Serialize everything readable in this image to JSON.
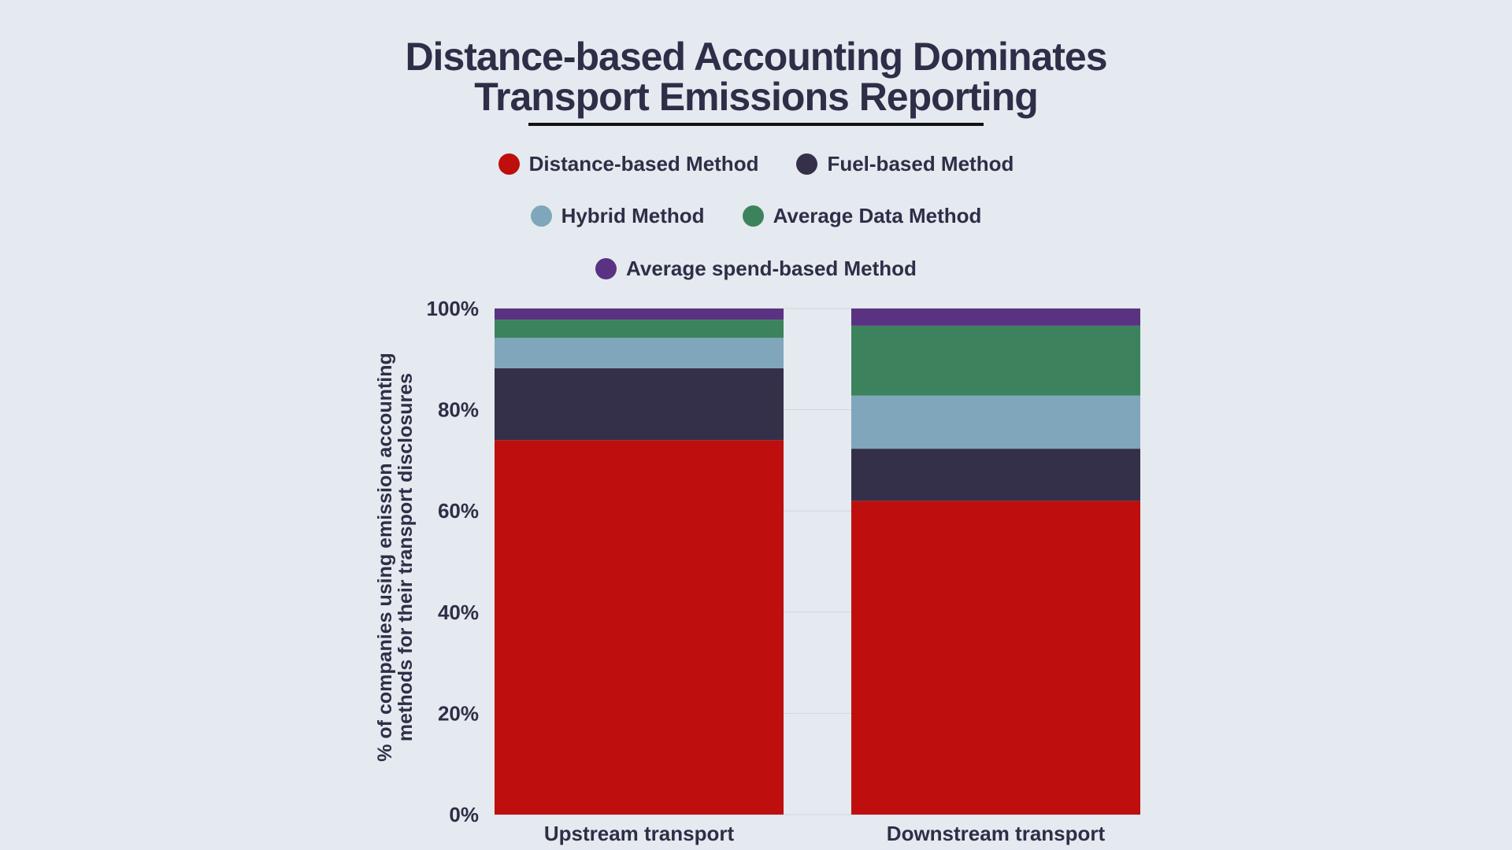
{
  "chart_data": {
    "type": "bar",
    "stacked": true,
    "title": "Distance-based Accounting Dominates Transport Emissions Reporting",
    "title_lines": [
      "Distance-based Accounting Dominates",
      "Transport Emissions Reporting"
    ],
    "ylabel_lines": [
      "% of companies using emission accounting",
      "methods for their transport disclosures"
    ],
    "xlabel": "",
    "categories": [
      "Upstream transport",
      "Downstream transport"
    ],
    "ylim": [
      0,
      100
    ],
    "yticks": [
      "0%",
      "20%",
      "40%",
      "60%",
      "80%",
      "100%"
    ],
    "ytick_values": [
      0,
      20,
      40,
      60,
      80,
      100
    ],
    "grid": "horizontal",
    "legend_position": "top",
    "series": [
      {
        "name": "Distance-based Method",
        "color": "#be0e0e",
        "values": [
          74,
          62
        ]
      },
      {
        "name": "Fuel-based Method",
        "color": "#35304a",
        "values": [
          14.2,
          10.3
        ]
      },
      {
        "name": "Hybrid Method",
        "color": "#80a6bb",
        "values": [
          6,
          10.5
        ]
      },
      {
        "name": "Average Data Method",
        "color": "#3c835d",
        "values": [
          3.6,
          13.8
        ]
      },
      {
        "name": "Average spend-based Method",
        "color": "#5a3282",
        "values": [
          2.2,
          3.4
        ]
      }
    ]
  }
}
